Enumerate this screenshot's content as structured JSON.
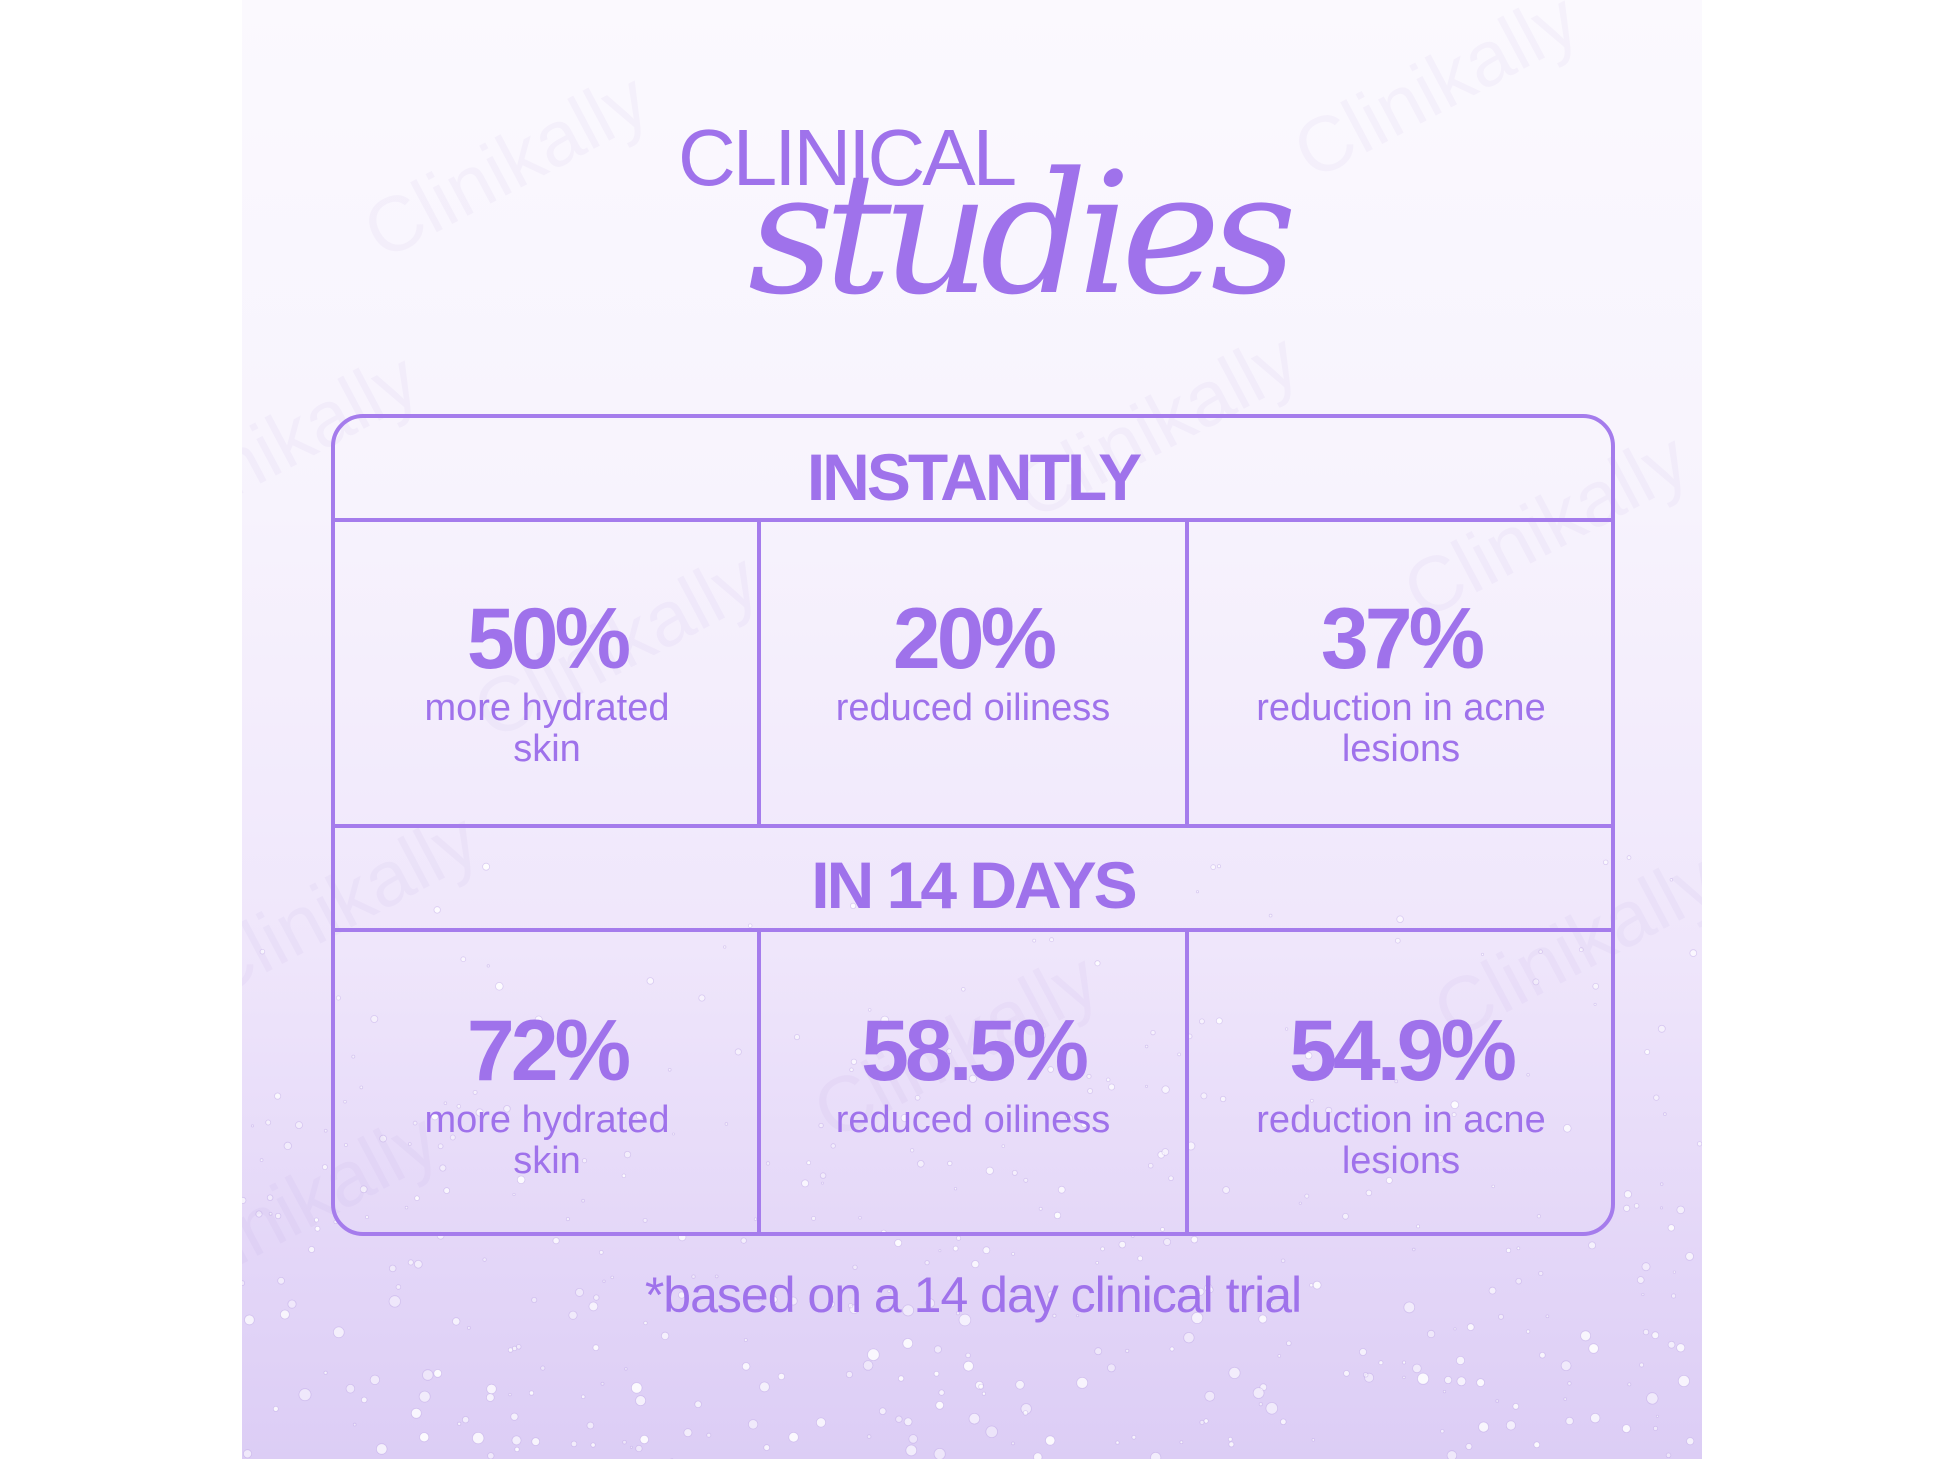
{
  "heading": {
    "line1": "CLINICAL",
    "line2": "studies"
  },
  "watermark_text": "Clinikally",
  "sections": [
    {
      "title": "INSTANTLY",
      "stats": [
        {
          "value": "50%",
          "label": "more hydrated skin"
        },
        {
          "value": "20%",
          "label": "reduced oiliness"
        },
        {
          "value": "37%",
          "label": "reduction in acne lesions"
        }
      ]
    },
    {
      "title": "IN 14 DAYS",
      "stats": [
        {
          "value": "72%",
          "label": "more hydrated skin"
        },
        {
          "value": "58.5%",
          "label": "reduced oiliness"
        },
        {
          "value": "54.9%",
          "label": "reduction in acne lesions"
        }
      ]
    }
  ],
  "footnote": "*based on a 14 day clinical trial",
  "colors": {
    "accent": "#9f72eb",
    "border": "#a57cec",
    "background_top": "#fbf9fe",
    "background_bottom": "#dccdf5"
  }
}
